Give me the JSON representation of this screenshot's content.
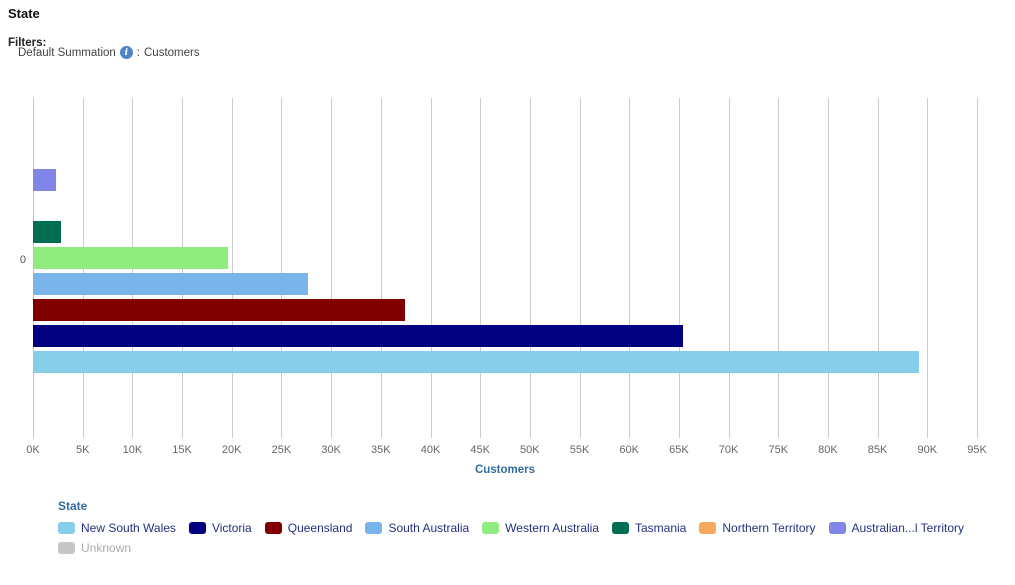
{
  "header": {
    "title": "State",
    "filters_label": "Filters:",
    "filter": {
      "name": "Default Summation",
      "info_icon": "i",
      "separator": ":",
      "value": "Customers"
    }
  },
  "chart_data": {
    "type": "bar",
    "orientation": "horizontal",
    "title": "State",
    "categories": [
      "0"
    ],
    "series": [
      {
        "name": "New South Wales",
        "color": "#87CEEB",
        "values": [
          89200
        ]
      },
      {
        "name": "Victoria",
        "color": "#000080",
        "values": [
          65400
        ]
      },
      {
        "name": "Queensland",
        "color": "#800000",
        "values": [
          37400
        ]
      },
      {
        "name": "South Australia",
        "color": "#79B4EA",
        "values": [
          27700
        ]
      },
      {
        "name": "Western Australia",
        "color": "#90EC7E",
        "values": [
          19600
        ]
      },
      {
        "name": "Tasmania",
        "color": "#016E54",
        "values": [
          2800
        ]
      },
      {
        "name": "Northern Territory",
        "color": "#F6A95C",
        "values": [
          0
        ]
      },
      {
        "name": "Australian...l Territory",
        "color": "#7F86E8",
        "values": [
          2300
        ]
      },
      {
        "name": "Unknown",
        "color": "#C6C6C6",
        "values": [
          0
        ],
        "muted": true
      }
    ],
    "xlabel": "Customers",
    "ylabel": "",
    "xlim": [
      0,
      95000
    ],
    "x_tick_step": 5000,
    "x_tick_suffix": "K",
    "grid": true,
    "legend_position": "bottom",
    "legend_title": "State"
  },
  "colors": {
    "grid": "#cccccc",
    "axis_zero_line": "#b9cbda",
    "tick_label": "#666666",
    "axis_title": "#336B9E",
    "legend_text": "#26307E",
    "legend_muted_text": "#ABABAB",
    "info_icon_bg": "#4E86C6"
  }
}
